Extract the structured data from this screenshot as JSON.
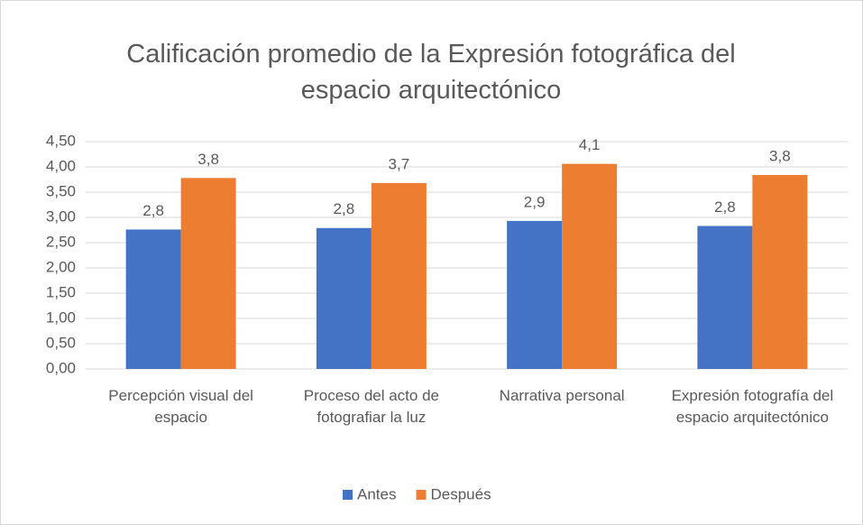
{
  "chart_data": {
    "type": "bar",
    "title": "Calificación promedio de la Expresión fotográfica del espacio arquitectónico",
    "categories": [
      "Percepción visual del espacio",
      "Proceso del acto de fotografiar la luz",
      "Narrativa personal",
      "Expresión fotografía del espacio arquitectónico"
    ],
    "series": [
      {
        "name": "Antes",
        "color": "#4472c4",
        "values": [
          2.76,
          2.79,
          2.93,
          2.83
        ],
        "value_labels": [
          "2,8",
          "2,8",
          "2,9",
          "2,8"
        ]
      },
      {
        "name": "Después",
        "color": "#ed7d31",
        "values": [
          3.78,
          3.68,
          4.06,
          3.84
        ],
        "value_labels": [
          "3,8",
          "3,7",
          "4,1",
          "3,8"
        ]
      }
    ],
    "ylim": [
      0,
      4.5
    ],
    "yticks": [
      {
        "value": 0,
        "label": "0,00"
      },
      {
        "value": 0.5,
        "label": "0,50"
      },
      {
        "value": 1,
        "label": "1,00"
      },
      {
        "value": 1.5,
        "label": "1,50"
      },
      {
        "value": 2,
        "label": "2,00"
      },
      {
        "value": 2.5,
        "label": "2,50"
      },
      {
        "value": 3,
        "label": "3,00"
      },
      {
        "value": 3.5,
        "label": "3,50"
      },
      {
        "value": 4,
        "label": "4,00"
      },
      {
        "value": 4.5,
        "label": "4,50"
      }
    ],
    "grid": true,
    "legend": "bottom"
  }
}
